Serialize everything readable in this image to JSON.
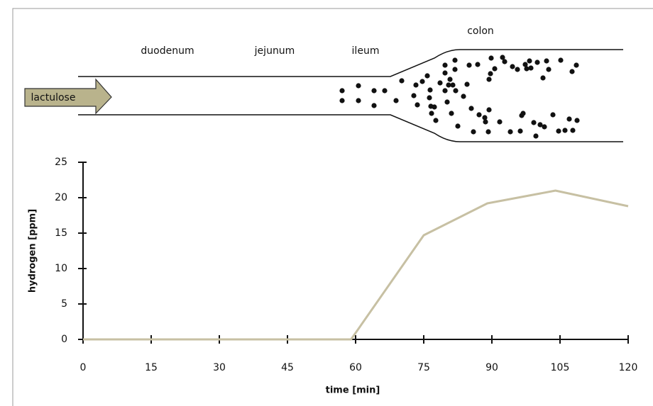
{
  "chart_data": {
    "type": "line",
    "diagram_labels": {
      "substance": "lactulose",
      "segments": [
        "duodenum",
        "jejunum",
        "ileum",
        "colon"
      ]
    },
    "xlabel": "time [min]",
    "ylabel": "hydrogen [ppm]",
    "xlim": [
      0,
      120
    ],
    "xticks": [
      0,
      15,
      30,
      45,
      60,
      75,
      90,
      105,
      120
    ],
    "ylim": [
      0,
      25
    ],
    "yticks": [
      0,
      5,
      10,
      15,
      20,
      25
    ],
    "series": [
      {
        "color": "#c7c0a3",
        "x": [
          0,
          59,
          75,
          89,
          104,
          120
        ],
        "values": [
          0,
          0,
          14.7,
          19.2,
          21,
          18.8
        ]
      }
    ]
  }
}
